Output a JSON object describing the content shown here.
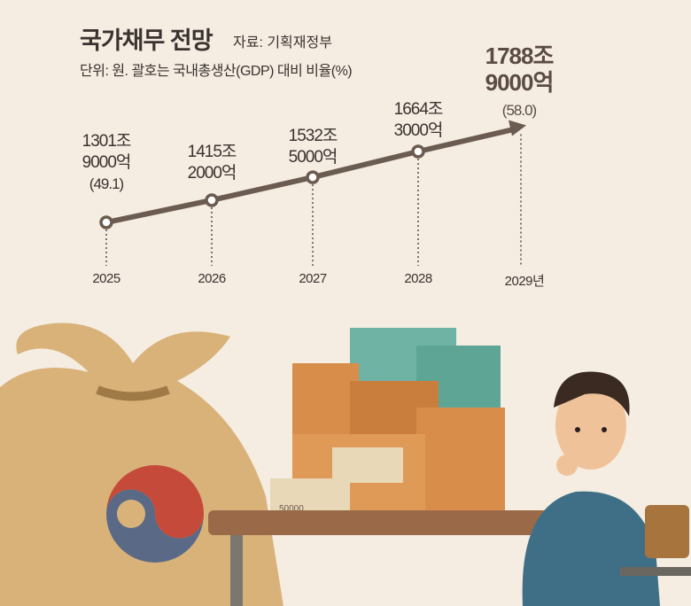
{
  "header": {
    "title": "국가채무 전망",
    "source": "자료: 기획재정부",
    "unit_note": "단위: 원. 괄호는 국내총생산(GDP) 대비 비율(%)"
  },
  "colors": {
    "background": "#f5ede1",
    "line": "#6b5b50",
    "text": "#3a3330"
  },
  "chart_data": {
    "type": "line",
    "title": "국가채무 전망",
    "x": [
      "2025",
      "2026",
      "2027",
      "2028",
      "2029년"
    ],
    "values_trillion_won": [
      1301.9,
      1415.2,
      1532.5,
      1664.3,
      1788.9
    ],
    "labels": [
      {
        "line1": "1301조",
        "line2": "9000억",
        "pct": "(49.1)"
      },
      {
        "line1": "1415조",
        "line2": "2000억",
        "pct": ""
      },
      {
        "line1": "1532조",
        "line2": "5000억",
        "pct": ""
      },
      {
        "line1": "1664조",
        "line2": "3000억",
        "pct": ""
      },
      {
        "line1": "1788조",
        "line2": "9000억",
        "pct": "(58.0)"
      }
    ],
    "gdp_ratio_pct": {
      "2025": 49.1,
      "2029": 58.0
    },
    "last_point_style": "arrow",
    "grid": false
  },
  "illustration": {
    "banknote_text": "50000",
    "description_icons": [
      "money-bag-icon",
      "government-emblem-icon",
      "cash-stacks-icon",
      "desk-icon",
      "worried-student-icon",
      "chair-icon"
    ]
  }
}
